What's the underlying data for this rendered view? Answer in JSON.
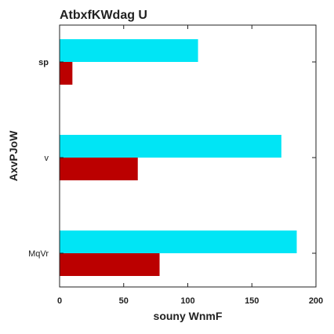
{
  "chart_data": {
    "type": "bar",
    "orientation": "horizontal",
    "title": "AtbxfKWdag U",
    "xlabel": "souny WnmF",
    "ylabel": "AxvPJoW",
    "categories": [
      "MqVr",
      "v",
      "sp"
    ],
    "series": [
      {
        "values": [
          78,
          61,
          10
        ],
        "color": "#bb0000"
      },
      {
        "values": [
          185,
          173,
          108
        ],
        "color": "#00e5f5"
      }
    ],
    "xlim": [
      0,
      200
    ],
    "xticks": [
      0,
      50,
      100,
      150,
      200
    ],
    "grid": false,
    "legend": "none"
  }
}
